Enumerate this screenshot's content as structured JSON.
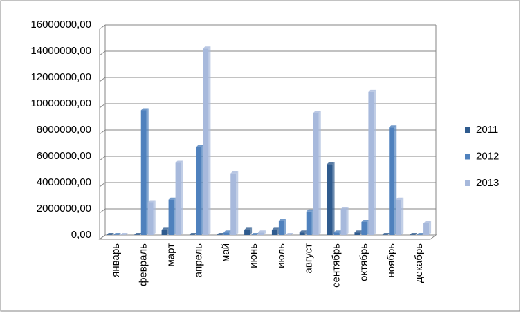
{
  "chart_data": {
    "type": "bar",
    "categories": [
      "январь",
      "февраль",
      "март",
      "апрель",
      "май",
      "июнь",
      "июль",
      "август",
      "сентябрь",
      "октябрь",
      "ноябрь",
      "декабрь"
    ],
    "series": [
      {
        "name": "2011",
        "color": "#2f5b8e",
        "values": [
          0,
          0,
          400000,
          0,
          0,
          400000,
          400000,
          200000,
          5400000,
          200000,
          0,
          0
        ]
      },
      {
        "name": "2012",
        "color": "#4f81bd",
        "values": [
          0,
          9500000,
          2700000,
          6700000,
          200000,
          0,
          1100000,
          1800000,
          200000,
          1000000,
          8200000,
          0
        ]
      },
      {
        "name": "2013",
        "color": "#a7b9dc",
        "values": [
          0,
          2500000,
          5500000,
          14200000,
          4700000,
          200000,
          0,
          9300000,
          2000000,
          10900000,
          2700000,
          900000
        ]
      }
    ],
    "ylim": [
      0,
      16000000
    ],
    "yticks": [
      {
        "value": 0,
        "label": "0,00"
      },
      {
        "value": 2000000,
        "label": "2000000,00"
      },
      {
        "value": 4000000,
        "label": "4000000,00"
      },
      {
        "value": 6000000,
        "label": "6000000,00"
      },
      {
        "value": 8000000,
        "label": "8000000,00"
      },
      {
        "value": 10000000,
        "label": "10000000,00"
      },
      {
        "value": 12000000,
        "label": "12000000,00"
      },
      {
        "value": 14000000,
        "label": "14000000,00"
      },
      {
        "value": 16000000,
        "label": "16000000,00"
      }
    ],
    "grid": true,
    "legend": "right"
  }
}
